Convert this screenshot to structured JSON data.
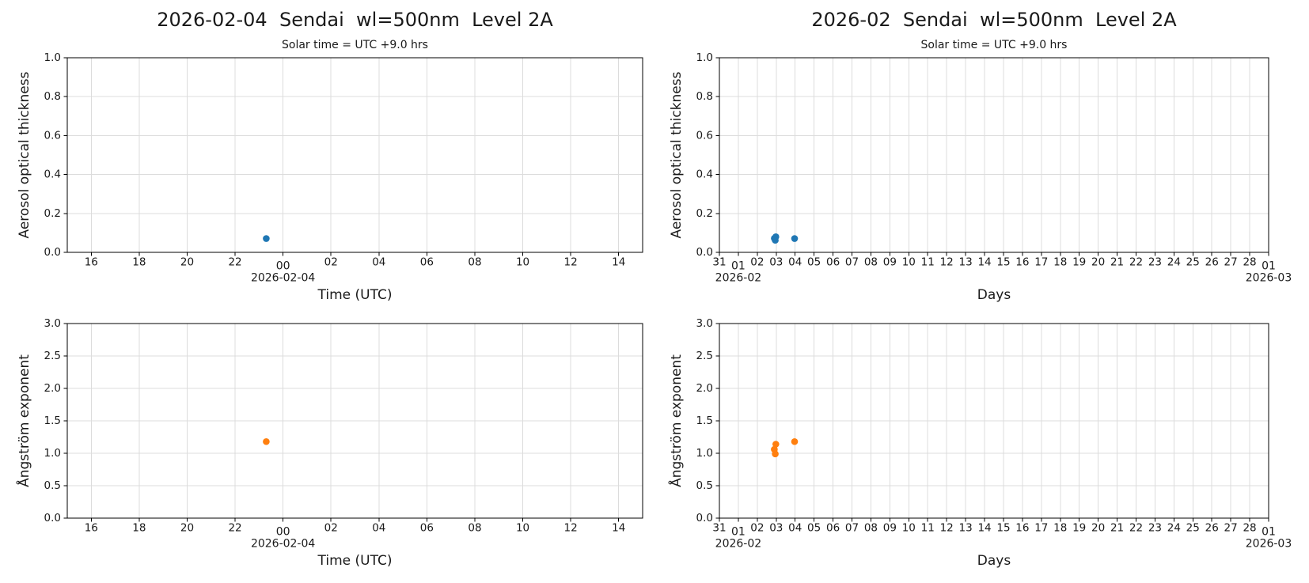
{
  "titles": {
    "left": "2026-02-04  Sendai  wl=500nm  Level 2A",
    "right": "2026-02  Sendai  wl=500nm  Level 2A",
    "subtitle": "Solar time = UTC +9.0 hrs"
  },
  "colors": {
    "aot_marker": "#1f77b4",
    "angstrom_marker": "#ff7f0e",
    "grid": "#dcdcdc",
    "spine": "#000000",
    "text": "#1a1a1a"
  },
  "chart_data": [
    {
      "id": "aot_daily",
      "type": "scatter",
      "position": "top-left",
      "xlabel": "Time (UTC)",
      "ylabel": "Aerosol optical thickness",
      "x_unit": "hour UTC, axis spans 2026-02-03 15:00 to 2026-02-04 15:00",
      "xlim": [
        15,
        39
      ],
      "ylim": [
        0.0,
        1.0
      ],
      "grid": true,
      "marker_color_key": "aot_marker",
      "xticks": [
        {
          "v": 16,
          "l": "16"
        },
        {
          "v": 18,
          "l": "18"
        },
        {
          "v": 20,
          "l": "20"
        },
        {
          "v": 22,
          "l": "22"
        },
        {
          "v": 24,
          "l": "00",
          "major": true,
          "date": "2026-02-04"
        },
        {
          "v": 26,
          "l": "02"
        },
        {
          "v": 28,
          "l": "04"
        },
        {
          "v": 30,
          "l": "06"
        },
        {
          "v": 32,
          "l": "08"
        },
        {
          "v": 34,
          "l": "10"
        },
        {
          "v": 36,
          "l": "12"
        },
        {
          "v": 38,
          "l": "14"
        }
      ],
      "yticks": [
        {
          "v": 0.0,
          "l": "0.0"
        },
        {
          "v": 0.2,
          "l": "0.2"
        },
        {
          "v": 0.4,
          "l": "0.4"
        },
        {
          "v": 0.6,
          "l": "0.6"
        },
        {
          "v": 0.8,
          "l": "0.8"
        },
        {
          "v": 1.0,
          "l": "1.0"
        }
      ],
      "points": [
        {
          "x": 23.3,
          "y": 0.071
        }
      ]
    },
    {
      "id": "ang_daily",
      "type": "scatter",
      "position": "bottom-left",
      "xlabel": "Time (UTC)",
      "ylabel": "Ångström exponent",
      "x_unit": "hour UTC, axis spans 2026-02-03 15:00 to 2026-02-04 15:00",
      "xlim": [
        15,
        39
      ],
      "ylim": [
        0.0,
        3.0
      ],
      "grid": true,
      "marker_color_key": "angstrom_marker",
      "xticks": [
        {
          "v": 16,
          "l": "16"
        },
        {
          "v": 18,
          "l": "18"
        },
        {
          "v": 20,
          "l": "20"
        },
        {
          "v": 22,
          "l": "22"
        },
        {
          "v": 24,
          "l": "00",
          "major": true,
          "date": "2026-02-04"
        },
        {
          "v": 26,
          "l": "02"
        },
        {
          "v": 28,
          "l": "04"
        },
        {
          "v": 30,
          "l": "06"
        },
        {
          "v": 32,
          "l": "08"
        },
        {
          "v": 34,
          "l": "10"
        },
        {
          "v": 36,
          "l": "12"
        },
        {
          "v": 38,
          "l": "14"
        }
      ],
      "yticks": [
        {
          "v": 0.0,
          "l": "0.0"
        },
        {
          "v": 0.5,
          "l": "0.5"
        },
        {
          "v": 1.0,
          "l": "1.0"
        },
        {
          "v": 1.5,
          "l": "1.5"
        },
        {
          "v": 2.0,
          "l": "2.0"
        },
        {
          "v": 2.5,
          "l": "2.5"
        },
        {
          "v": 3.0,
          "l": "3.0"
        }
      ],
      "points": [
        {
          "x": 23.3,
          "y": 1.18
        }
      ]
    },
    {
      "id": "aot_monthly",
      "type": "scatter",
      "position": "top-right",
      "xlabel": "Days",
      "ylabel": "Aerosol optical thickness",
      "x_unit": "days since 2026-01-31 00:00 UTC, axis spans 2026-01-31 to 2026-03-01",
      "xlim": [
        0,
        29
      ],
      "ylim": [
        0.0,
        1.0
      ],
      "grid": true,
      "marker_color_key": "aot_marker",
      "xticks": [
        {
          "v": 0,
          "l": "31"
        },
        {
          "v": 1,
          "l": "01",
          "major": true,
          "date": "2026-02"
        },
        {
          "v": 2,
          "l": "02"
        },
        {
          "v": 3,
          "l": "03"
        },
        {
          "v": 4,
          "l": "04"
        },
        {
          "v": 5,
          "l": "05"
        },
        {
          "v": 6,
          "l": "06"
        },
        {
          "v": 7,
          "l": "07"
        },
        {
          "v": 8,
          "l": "08"
        },
        {
          "v": 9,
          "l": "09"
        },
        {
          "v": 10,
          "l": "10"
        },
        {
          "v": 11,
          "l": "11"
        },
        {
          "v": 12,
          "l": "12"
        },
        {
          "v": 13,
          "l": "13"
        },
        {
          "v": 14,
          "l": "14"
        },
        {
          "v": 15,
          "l": "15"
        },
        {
          "v": 16,
          "l": "16"
        },
        {
          "v": 17,
          "l": "17"
        },
        {
          "v": 18,
          "l": "18"
        },
        {
          "v": 19,
          "l": "19"
        },
        {
          "v": 20,
          "l": "20"
        },
        {
          "v": 21,
          "l": "21"
        },
        {
          "v": 22,
          "l": "22"
        },
        {
          "v": 23,
          "l": "23"
        },
        {
          "v": 24,
          "l": "24"
        },
        {
          "v": 25,
          "l": "25"
        },
        {
          "v": 26,
          "l": "26"
        },
        {
          "v": 27,
          "l": "27"
        },
        {
          "v": 28,
          "l": "28"
        },
        {
          "v": 29,
          "l": "01",
          "major": true,
          "date": "2026-03"
        }
      ],
      "yticks": [
        {
          "v": 0.0,
          "l": "0.0"
        },
        {
          "v": 0.2,
          "l": "0.2"
        },
        {
          "v": 0.4,
          "l": "0.4"
        },
        {
          "v": 0.6,
          "l": "0.6"
        },
        {
          "v": 0.8,
          "l": "0.8"
        },
        {
          "v": 1.0,
          "l": "1.0"
        }
      ],
      "points": [
        {
          "x": 2.9,
          "y": 0.072
        },
        {
          "x": 2.95,
          "y": 0.062
        },
        {
          "x": 2.98,
          "y": 0.08
        },
        {
          "x": 3.97,
          "y": 0.071
        }
      ]
    },
    {
      "id": "ang_monthly",
      "type": "scatter",
      "position": "bottom-right",
      "xlabel": "Days",
      "ylabel": "Ångström exponent",
      "x_unit": "days since 2026-01-31 00:00 UTC, axis spans 2026-01-31 to 2026-03-01",
      "xlim": [
        0,
        29
      ],
      "ylim": [
        0.0,
        3.0
      ],
      "grid": true,
      "marker_color_key": "angstrom_marker",
      "xticks": [
        {
          "v": 0,
          "l": "31"
        },
        {
          "v": 1,
          "l": "01",
          "major": true,
          "date": "2026-02"
        },
        {
          "v": 2,
          "l": "02"
        },
        {
          "v": 3,
          "l": "03"
        },
        {
          "v": 4,
          "l": "04"
        },
        {
          "v": 5,
          "l": "05"
        },
        {
          "v": 6,
          "l": "06"
        },
        {
          "v": 7,
          "l": "07"
        },
        {
          "v": 8,
          "l": "08"
        },
        {
          "v": 9,
          "l": "09"
        },
        {
          "v": 10,
          "l": "10"
        },
        {
          "v": 11,
          "l": "11"
        },
        {
          "v": 12,
          "l": "12"
        },
        {
          "v": 13,
          "l": "13"
        },
        {
          "v": 14,
          "l": "14"
        },
        {
          "v": 15,
          "l": "15"
        },
        {
          "v": 16,
          "l": "16"
        },
        {
          "v": 17,
          "l": "17"
        },
        {
          "v": 18,
          "l": "18"
        },
        {
          "v": 19,
          "l": "19"
        },
        {
          "v": 20,
          "l": "20"
        },
        {
          "v": 21,
          "l": "21"
        },
        {
          "v": 22,
          "l": "22"
        },
        {
          "v": 23,
          "l": "23"
        },
        {
          "v": 24,
          "l": "24"
        },
        {
          "v": 25,
          "l": "25"
        },
        {
          "v": 26,
          "l": "26"
        },
        {
          "v": 27,
          "l": "27"
        },
        {
          "v": 28,
          "l": "28"
        },
        {
          "v": 29,
          "l": "01",
          "major": true,
          "date": "2026-03"
        }
      ],
      "yticks": [
        {
          "v": 0.0,
          "l": "0.0"
        },
        {
          "v": 0.5,
          "l": "0.5"
        },
        {
          "v": 1.0,
          "l": "1.0"
        },
        {
          "v": 1.5,
          "l": "1.5"
        },
        {
          "v": 2.0,
          "l": "2.0"
        },
        {
          "v": 2.5,
          "l": "2.5"
        },
        {
          "v": 3.0,
          "l": "3.0"
        }
      ],
      "points": [
        {
          "x": 2.9,
          "y": 1.06
        },
        {
          "x": 2.95,
          "y": 0.99
        },
        {
          "x": 2.98,
          "y": 1.14
        },
        {
          "x": 3.97,
          "y": 1.18
        }
      ]
    }
  ]
}
